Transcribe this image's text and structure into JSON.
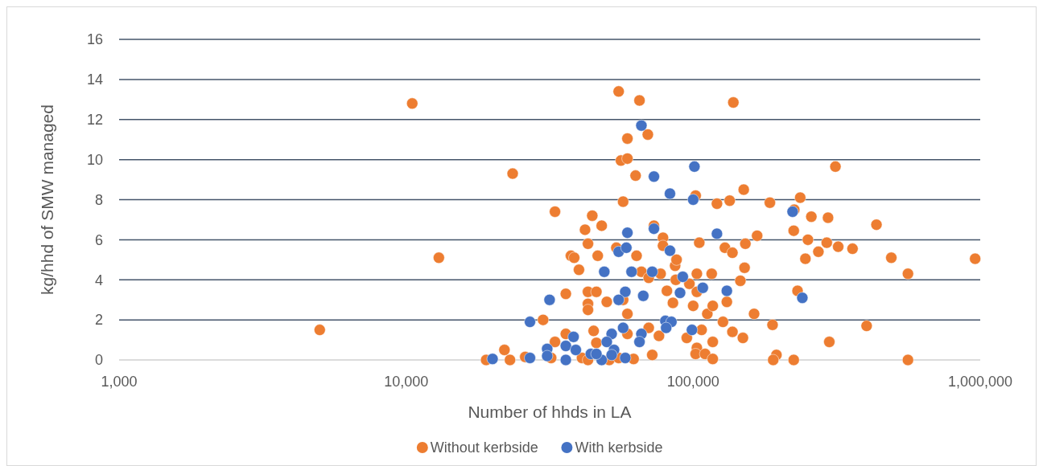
{
  "chart_data": {
    "type": "scatter",
    "xlabel": "Number of hhds in LA",
    "ylabel": "kg/hhd of SMW managed",
    "log": "x",
    "xlim": [
      1000,
      1000000
    ],
    "xticks": [
      {
        "value": 1000,
        "label": "1,000"
      },
      {
        "value": 10000,
        "label": "10,000"
      },
      {
        "value": 100000,
        "label": "100,000"
      },
      {
        "value": 1000000,
        "label": "1,000,000"
      }
    ],
    "ylim": [
      0,
      16
    ],
    "yticks": [
      0,
      2,
      4,
      6,
      8,
      10,
      12,
      14,
      16
    ],
    "grid": "y",
    "legend": "bottom",
    "marker": "circle",
    "series": [
      {
        "name": "Without kerbside",
        "color": "#ed7d31",
        "x": [
          5000,
          10500,
          13000,
          23500,
          19000,
          22000,
          23000,
          26000,
          30000,
          36000,
          36000,
          33000,
          32000,
          37500,
          38500,
          40000,
          43000,
          43000,
          46000,
          43000,
          43000,
          46500,
          45000,
          46000,
          50000,
          54000,
          57000,
          59000,
          59000,
          63500,
          66000,
          70000,
          70000,
          76000,
          72000,
          78500,
          78500,
          81000,
          85000,
          86500,
          87500,
          77000,
          87000,
          100000,
          95000,
          103000,
          102000,
          110000,
          117000,
          117000,
          107000,
          112000,
          117000,
          127000,
          137000,
          149000,
          163000,
          131000,
          146000,
          151000,
          105000,
          103000,
          116000,
          129000,
          137000,
          152000,
          167000,
          97000,
          103000,
          55000,
          65000,
          138000,
          69500,
          59000,
          56000,
          59000,
          63000,
          57000,
          102000,
          121000,
          134000,
          150000,
          33000,
          44500,
          42000,
          48000,
          73000,
          313000,
          236000,
          185000,
          225000,
          258000,
          295000,
          435000,
          224000,
          251000,
          292000,
          273000,
          320000,
          359000,
          246000,
          490000,
          960000,
          560000,
          231000,
          189000,
          402000,
          298000,
          195000,
          190000,
          224000,
          560000,
          41000,
          51000,
          62000,
          55000,
          43000
        ],
        "values": [
          1.5,
          12.8,
          5.1,
          9.3,
          0,
          0.5,
          0,
          0.15,
          2.0,
          3.3,
          1.3,
          0.9,
          0.1,
          5.2,
          5.1,
          4.5,
          5.8,
          3.4,
          3.4,
          2.8,
          2.5,
          5.2,
          1.45,
          0.85,
          2.9,
          5.6,
          3.0,
          2.3,
          1.3,
          5.2,
          4.4,
          4.1,
          1.6,
          1.2,
          0.25,
          6.1,
          5.7,
          3.45,
          2.85,
          4.7,
          5.0,
          4.3,
          4.0,
          2.7,
          1.1,
          0.6,
          0.3,
          0.3,
          0.9,
          0.05,
          1.5,
          2.3,
          2.7,
          1.9,
          1.4,
          1.1,
          2.3,
          2.9,
          3.95,
          4.6,
          5.85,
          4.3,
          4.3,
          5.6,
          5.35,
          5.8,
          6.2,
          3.8,
          3.4,
          13.4,
          12.95,
          12.85,
          11.25,
          11.05,
          9.95,
          10.05,
          9.2,
          7.9,
          8.2,
          7.8,
          7.95,
          8.5,
          7.4,
          7.2,
          6.5,
          6.7,
          6.7,
          9.65,
          8.1,
          7.85,
          7.5,
          7.15,
          7.1,
          6.75,
          6.45,
          6.0,
          5.85,
          5.4,
          5.65,
          5.55,
          5.05,
          5.1,
          5.05,
          4.3,
          3.45,
          1.75,
          1.7,
          0.9,
          0.25,
          0,
          0,
          0,
          0.1,
          0,
          0.05,
          0.1,
          0
        ]
      },
      {
        "name": "With kerbside",
        "color": "#4472c4",
        "x": [
          66000,
          101000,
          73000,
          83000,
          100000,
          59000,
          73000,
          121000,
          222000,
          240000,
          55000,
          58500,
          83000,
          49000,
          61000,
          72000,
          92000,
          108000,
          131000,
          90000,
          58000,
          55000,
          67000,
          31600,
          27000,
          80000,
          84000,
          80500,
          99000,
          57000,
          66000,
          65000,
          38300,
          52000,
          50000,
          20000,
          27000,
          31000,
          31000,
          36000,
          39000,
          36000,
          44000,
          48000,
          53000,
          52000,
          58000,
          46000
        ],
        "values": [
          11.7,
          9.65,
          9.15,
          8.3,
          8.0,
          6.35,
          6.55,
          6.3,
          7.4,
          3.1,
          5.4,
          5.6,
          5.45,
          4.4,
          4.4,
          4.4,
          4.15,
          3.6,
          3.45,
          3.35,
          3.4,
          3.0,
          3.2,
          3.0,
          1.9,
          1.95,
          1.9,
          1.6,
          1.5,
          1.6,
          1.3,
          0.9,
          1.15,
          1.3,
          0.9,
          0.05,
          0.1,
          0.55,
          0.2,
          0.7,
          0.5,
          0,
          0.3,
          0,
          0.5,
          0.25,
          0.1,
          0.3
        ]
      }
    ]
  }
}
